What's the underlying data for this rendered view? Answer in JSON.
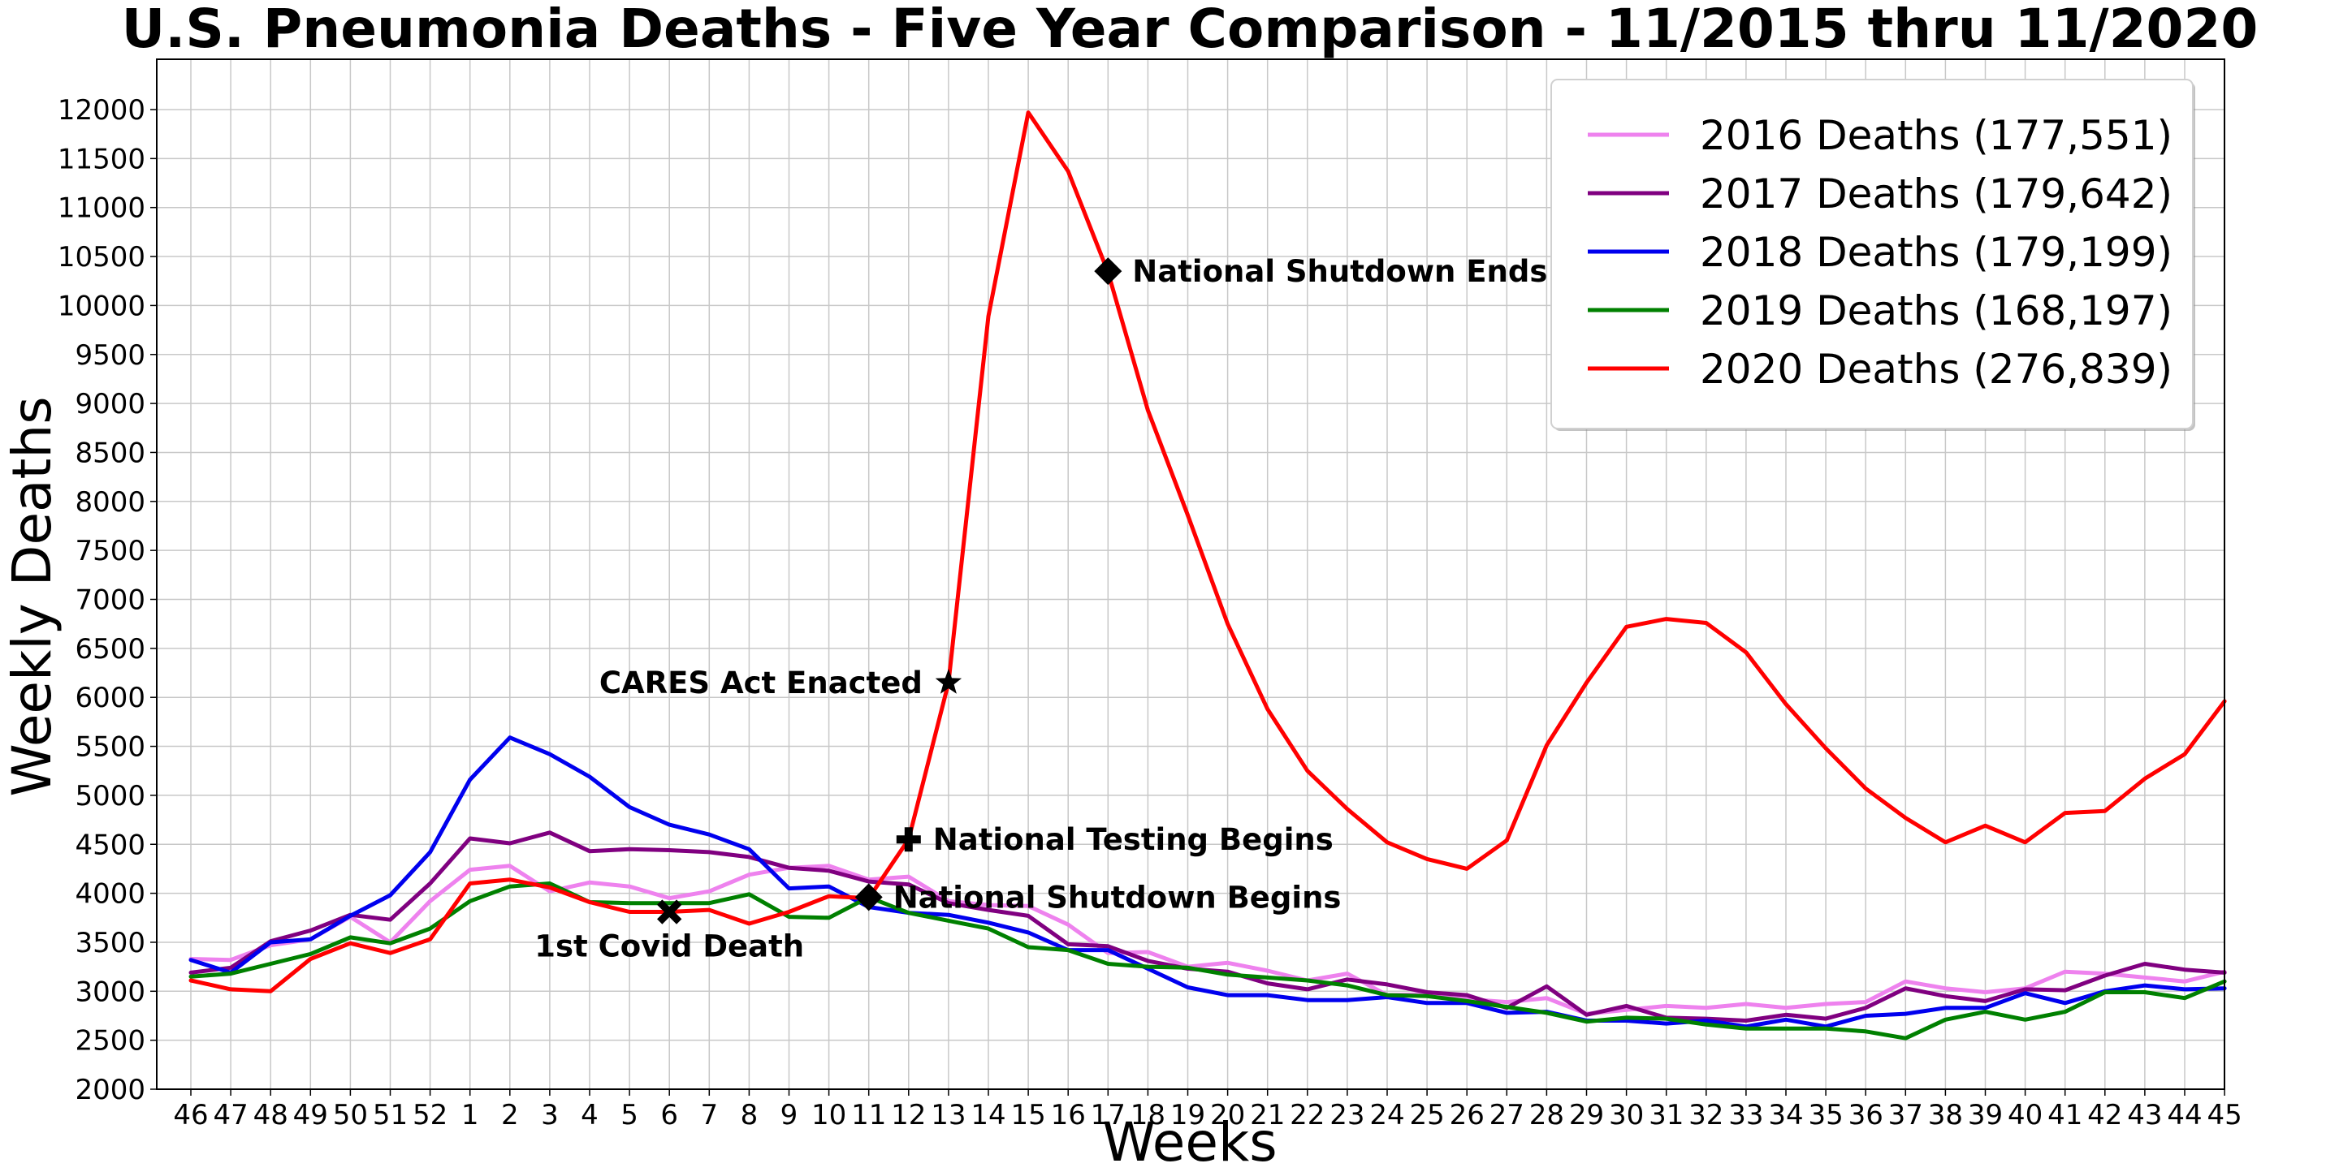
{
  "chart_data": {
    "type": "line",
    "title": "U.S. Pneumonia Deaths - Five Year Comparison - 11/2015 thru 11/2020",
    "xlabel": "Weeks",
    "ylabel": "Weekly Deaths",
    "ylim": [
      2000,
      12000
    ],
    "y_ticks": [
      2000,
      2500,
      3000,
      3500,
      4000,
      4500,
      5000,
      5500,
      6000,
      6500,
      7000,
      7500,
      8000,
      8500,
      9000,
      9500,
      10000,
      10500,
      11000,
      11500,
      12000
    ],
    "categories": [
      "46",
      "47",
      "48",
      "49",
      "50",
      "51",
      "52",
      "1",
      "2",
      "3",
      "4",
      "5",
      "6",
      "7",
      "8",
      "9",
      "10",
      "11",
      "12",
      "13",
      "14",
      "15",
      "16",
      "17",
      "18",
      "19",
      "20",
      "21",
      "22",
      "23",
      "24",
      "25",
      "26",
      "27",
      "28",
      "29",
      "30",
      "31",
      "32",
      "33",
      "34",
      "35",
      "36",
      "37",
      "38",
      "39",
      "40",
      "41",
      "42",
      "43",
      "44",
      "45"
    ],
    "grid": true,
    "legend_position": "top-right",
    "series": [
      {
        "name": "2016 Deaths (177,551)",
        "color": "#ee82ee",
        "values": [
          3330,
          3320,
          3470,
          3530,
          3760,
          3500,
          3920,
          4240,
          4280,
          4020,
          4110,
          4070,
          3950,
          4020,
          4190,
          4260,
          4280,
          4140,
          4170,
          3920,
          3880,
          3870,
          3680,
          3390,
          3400,
          3250,
          3290,
          3210,
          3110,
          3180,
          2960,
          2970,
          2920,
          2890,
          2930,
          2770,
          2810,
          2850,
          2830,
          2870,
          2830,
          2870,
          2890,
          3100,
          3030,
          2990,
          3030,
          3200,
          3180,
          3140,
          3100,
          3200
        ]
      },
      {
        "name": "2017 Deaths (179,642)",
        "color": "#800080",
        "values": [
          3190,
          3240,
          3510,
          3620,
          3780,
          3730,
          4100,
          4560,
          4510,
          4620,
          4430,
          4450,
          4440,
          4420,
          4370,
          4260,
          4230,
          4120,
          4090,
          3900,
          3830,
          3770,
          3480,
          3460,
          3310,
          3230,
          3200,
          3080,
          3020,
          3120,
          3070,
          2990,
          2960,
          2830,
          3050,
          2760,
          2850,
          2730,
          2720,
          2700,
          2760,
          2720,
          2830,
          3030,
          2950,
          2900,
          3020,
          3010,
          3160,
          3280,
          3220,
          3190
        ]
      },
      {
        "name": "2018 Deaths (179,199)",
        "color": "#0000ee",
        "values": [
          3320,
          3190,
          3500,
          3530,
          3770,
          3980,
          4420,
          5160,
          5590,
          5420,
          5190,
          4880,
          4700,
          4600,
          4450,
          4050,
          4070,
          3860,
          3800,
          3780,
          3700,
          3600,
          3420,
          3420,
          3230,
          3040,
          2960,
          2960,
          2910,
          2910,
          2940,
          2880,
          2880,
          2780,
          2790,
          2700,
          2700,
          2670,
          2700,
          2640,
          2710,
          2640,
          2750,
          2770,
          2830,
          2830,
          2980,
          2880,
          3000,
          3060,
          3020,
          3030
        ]
      },
      {
        "name": "2019 Deaths (168,197)",
        "color": "#008000",
        "values": [
          3150,
          3180,
          3280,
          3380,
          3550,
          3490,
          3640,
          3920,
          4070,
          4100,
          3910,
          3900,
          3900,
          3900,
          3990,
          3760,
          3750,
          3960,
          3800,
          3720,
          3640,
          3450,
          3420,
          3280,
          3250,
          3240,
          3170,
          3140,
          3110,
          3060,
          2960,
          2950,
          2900,
          2840,
          2780,
          2690,
          2730,
          2720,
          2660,
          2620,
          2620,
          2620,
          2590,
          2520,
          2710,
          2790,
          2710,
          2790,
          2990,
          2990,
          2930,
          3100
        ]
      },
      {
        "name": "2020 Deaths (276,839)",
        "color": "#ff0000",
        "values": [
          3110,
          3020,
          3000,
          3330,
          3490,
          3390,
          3530,
          4100,
          4140,
          4060,
          3910,
          3810,
          3810,
          3830,
          3690,
          3810,
          3970,
          3950,
          4550,
          6150,
          9890,
          11970,
          11370,
          10340,
          8930,
          7860,
          6750,
          5880,
          5250,
          4860,
          4520,
          4350,
          4250,
          4540,
          5510,
          6150,
          6720,
          6800,
          6760,
          6460,
          5930,
          5480,
          5070,
          4770,
          4520,
          4690,
          4520,
          4820,
          4840,
          5170,
          5420,
          5960
        ]
      }
    ],
    "annotations": [
      {
        "text": "National Shutdown Ends",
        "marker": "diamond",
        "category": "17",
        "value": 10350,
        "label_side": "right"
      },
      {
        "text": "CARES Act Enacted",
        "marker": "star",
        "category": "13",
        "value": 6150,
        "label_side": "left"
      },
      {
        "text": "National Testing Begins",
        "marker": "plus",
        "category": "12",
        "value": 4550,
        "label_side": "right"
      },
      {
        "text": "National Shutdown Begins",
        "marker": "diamond",
        "category": "11",
        "value": 3960,
        "label_side": "right"
      },
      {
        "text": "1st Covid Death",
        "marker": "x",
        "category": "6",
        "value": 3810,
        "label_side": "below"
      }
    ]
  }
}
